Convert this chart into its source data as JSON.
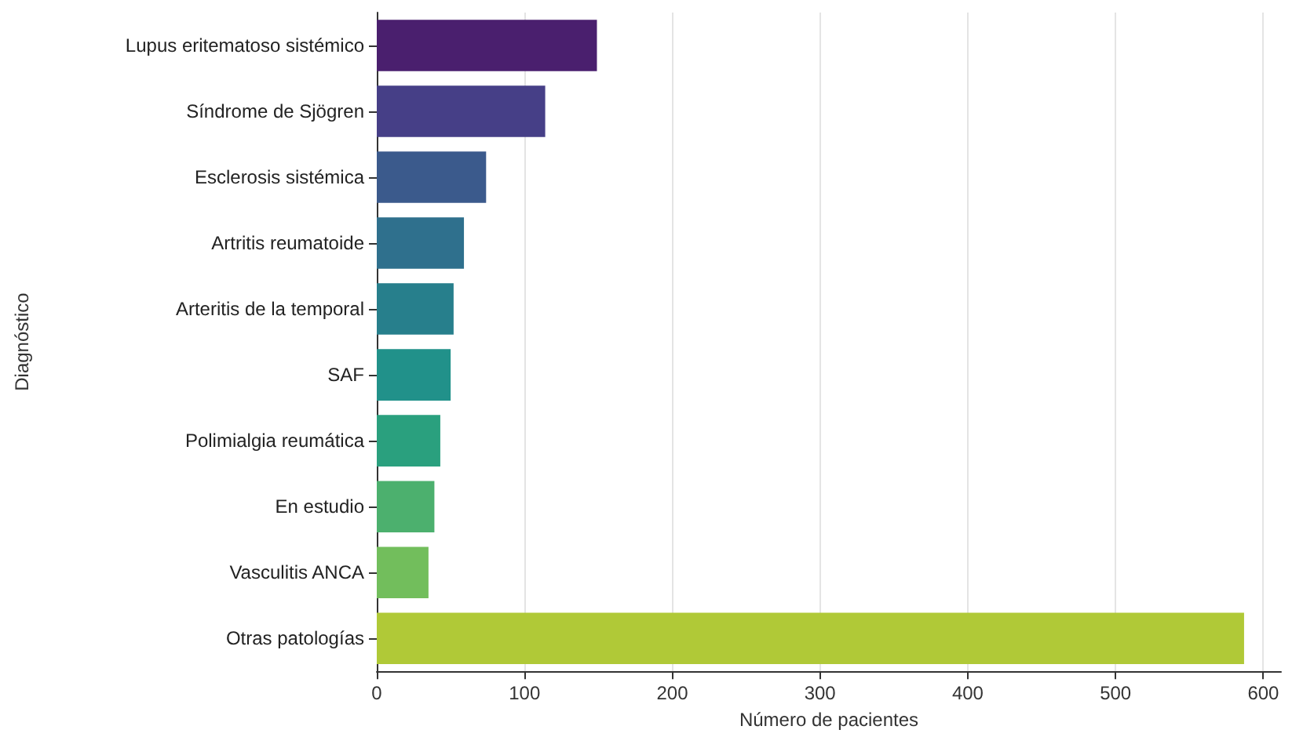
{
  "chart_data": {
    "type": "bar",
    "orientation": "horizontal",
    "xlabel": "Número de pacientes",
    "ylabel": "Diagnóstico",
    "categories": [
      "Lupus eritematoso sistémico",
      "Síndrome de Sjögren",
      "Esclerosis sistémica",
      "Artritis reumatoide",
      "Arteritis de la temporal",
      "SAF",
      "Polimialgia reumática",
      "En estudio",
      "Vasculitis ANCA",
      "Otras patologías"
    ],
    "values": [
      149,
      114,
      74,
      59,
      52,
      50,
      43,
      39,
      35,
      587
    ],
    "colors": [
      "#4a1f6e",
      "#463f87",
      "#3b5a8c",
      "#2f708d",
      "#277f8c",
      "#21918a",
      "#2aa07e",
      "#4cb06e",
      "#72be5c",
      "#b0c937"
    ],
    "xlim": [
      0,
      612
    ],
    "xticks": [
      0,
      100,
      200,
      300,
      400,
      500,
      600
    ],
    "grid": "x"
  }
}
